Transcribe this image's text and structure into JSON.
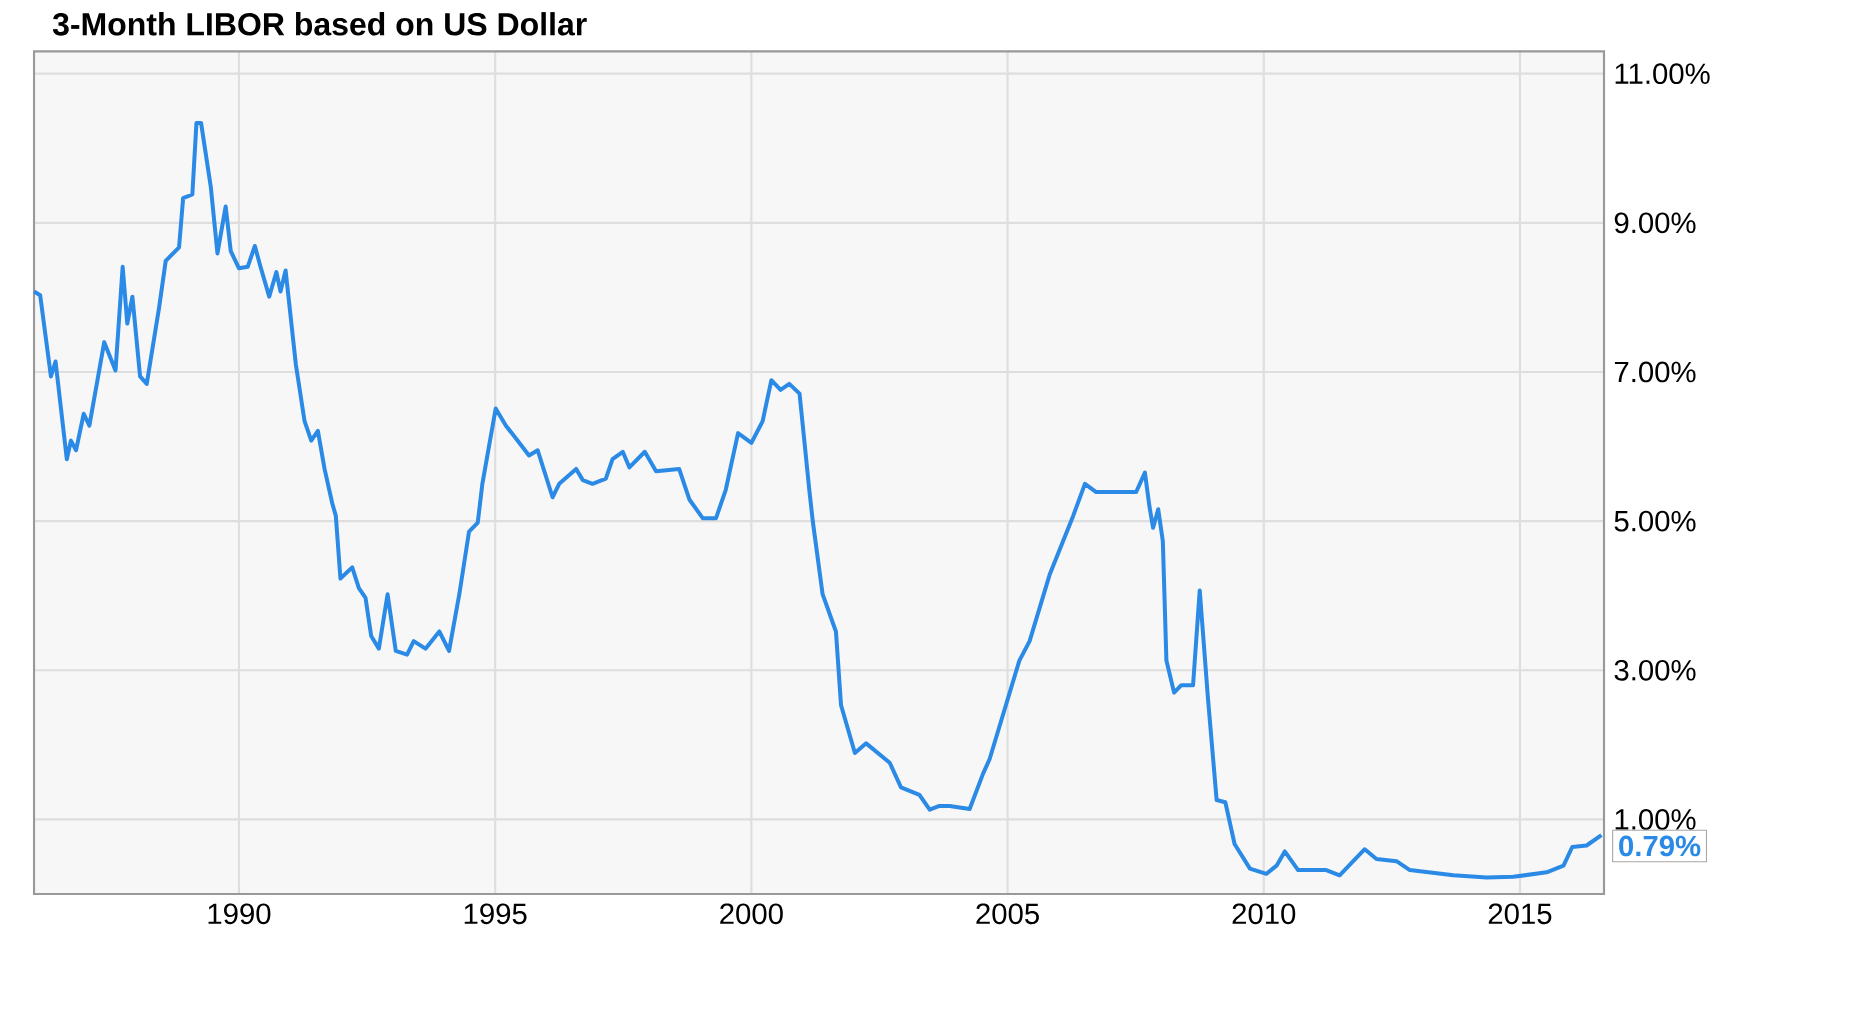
{
  "chart_data": {
    "type": "line",
    "title": "3-Month LIBOR based on US Dollar",
    "x": [
      1986.0,
      1986.12,
      1986.33,
      1986.42,
      1986.64,
      1986.72,
      1986.82,
      1986.97,
      1987.08,
      1987.37,
      1987.59,
      1987.73,
      1987.82,
      1987.92,
      1988.07,
      1988.2,
      1988.44,
      1988.57,
      1988.83,
      1988.91,
      1989.09,
      1989.17,
      1989.26,
      1989.45,
      1989.58,
      1989.74,
      1989.84,
      1990.0,
      1990.17,
      1990.31,
      1990.42,
      1990.59,
      1990.73,
      1990.81,
      1990.91,
      1991.11,
      1991.28,
      1991.41,
      1991.54,
      1991.67,
      1991.82,
      1991.89,
      1991.98,
      1992.21,
      1992.34,
      1992.47,
      1992.58,
      1992.73,
      1992.9,
      1993.06,
      1993.28,
      1993.41,
      1993.64,
      1993.91,
      1994.1,
      1994.3,
      1994.49,
      1994.66,
      1994.75,
      1995.01,
      1995.21,
      1995.47,
      1995.66,
      1995.83,
      1996.12,
      1996.25,
      1996.58,
      1996.71,
      1996.9,
      1997.16,
      1997.29,
      1997.49,
      1997.62,
      1997.92,
      1998.14,
      1998.59,
      1998.79,
      1999.05,
      1999.31,
      1999.5,
      1999.74,
      2000.0,
      2000.22,
      2000.39,
      2000.57,
      2000.74,
      2000.94,
      2001.13,
      2001.2,
      2001.39,
      2001.65,
      2001.75,
      2002.02,
      2002.24,
      2002.7,
      2002.92,
      2003.28,
      2003.48,
      2003.67,
      2003.87,
      2004.26,
      2004.52,
      2004.65,
      2005.23,
      2005.43,
      2005.82,
      2006.28,
      2006.51,
      2006.73,
      2007.51,
      2007.68,
      2007.77,
      2007.84,
      2007.94,
      2008.03,
      2008.1,
      2008.25,
      2008.39,
      2008.62,
      2008.75,
      2008.91,
      2009.08,
      2009.25,
      2009.43,
      2009.73,
      2010.05,
      2010.25,
      2010.41,
      2010.67,
      2011.22,
      2011.48,
      2011.97,
      2012.2,
      2012.59,
      2012.85,
      2013.7,
      2014.35,
      2014.87,
      2015.52,
      2015.85,
      2016.02,
      2016.3,
      2016.59
    ],
    "series": [
      {
        "color": "#2a8ae6",
        "values": [
          8.08,
          8.03,
          6.94,
          7.14,
          5.83,
          6.08,
          5.95,
          6.44,
          6.28,
          7.4,
          7.02,
          8.41,
          7.65,
          8.01,
          6.94,
          6.84,
          7.86,
          8.49,
          8.67,
          9.33,
          9.38,
          10.34,
          10.34,
          9.48,
          8.59,
          9.22,
          8.62,
          8.39,
          8.41,
          8.69,
          8.41,
          8.01,
          8.34,
          8.08,
          8.36,
          7.1,
          6.34,
          6.08,
          6.21,
          5.7,
          5.24,
          5.07,
          4.23,
          4.38,
          4.1,
          3.97,
          3.46,
          3.29,
          4.02,
          3.26,
          3.21,
          3.39,
          3.29,
          3.52,
          3.26,
          4.02,
          4.86,
          4.98,
          5.5,
          6.51,
          6.28,
          6.05,
          5.88,
          5.95,
          5.32,
          5.5,
          5.7,
          5.55,
          5.5,
          5.57,
          5.83,
          5.93,
          5.72,
          5.93,
          5.67,
          5.7,
          5.29,
          5.04,
          5.04,
          5.42,
          6.18,
          6.05,
          6.34,
          6.89,
          6.76,
          6.84,
          6.71,
          5.42,
          4.99,
          4.02,
          3.52,
          2.53,
          1.89,
          2.02,
          1.76,
          1.43,
          1.33,
          1.13,
          1.18,
          1.18,
          1.14,
          1.61,
          1.81,
          3.13,
          3.39,
          4.28,
          5.07,
          5.5,
          5.39,
          5.39,
          5.65,
          5.19,
          4.91,
          5.16,
          4.73,
          3.13,
          2.7,
          2.8,
          2.8,
          4.07,
          2.63,
          1.26,
          1.23,
          0.67,
          0.34,
          0.27,
          0.38,
          0.57,
          0.32,
          0.32,
          0.25,
          0.6,
          0.47,
          0.44,
          0.32,
          0.25,
          0.22,
          0.23,
          0.29,
          0.38,
          0.63,
          0.65,
          0.79
        ]
      }
    ],
    "xlim": [
      1986.0,
      2016.64
    ],
    "xticks": [
      1990,
      1995,
      2000,
      2005,
      2010,
      2015
    ],
    "ylim": [
      0,
      11.3
    ],
    "yticks": [
      {
        "value": 1,
        "label": "1.00%"
      },
      {
        "value": 3,
        "label": "3.00%"
      },
      {
        "value": 5,
        "label": "5.00%"
      },
      {
        "value": 7,
        "label": "7.00%"
      },
      {
        "value": 9,
        "label": "9.00%"
      },
      {
        "value": 11,
        "label": "11.00%"
      }
    ],
    "annotations": [
      {
        "text": "0.79%",
        "x": 2016.59,
        "y": 0.79
      }
    ],
    "grid": true,
    "line_style": "solid"
  }
}
